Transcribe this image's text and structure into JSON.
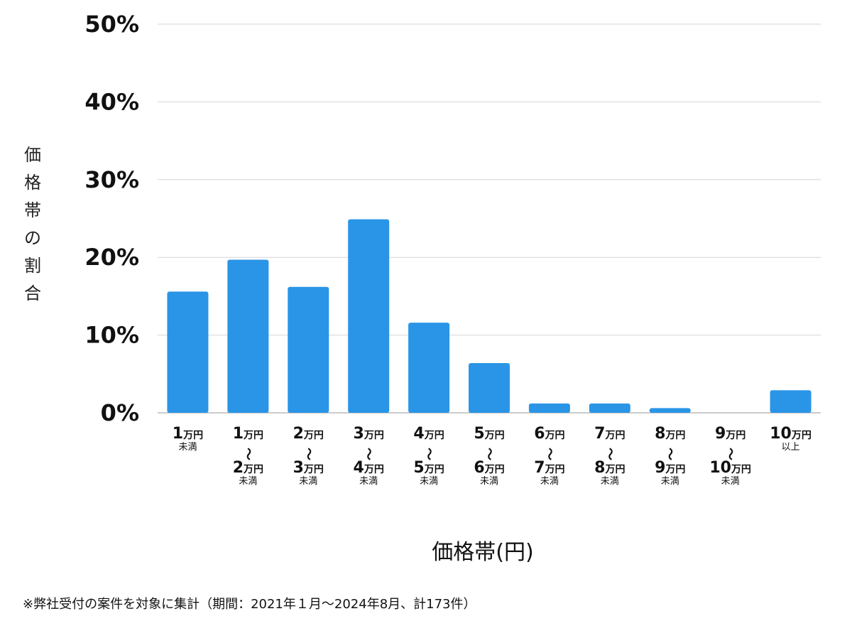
{
  "chart_data": {
    "type": "bar",
    "ylabel": "価格帯の割合",
    "xlabel": "価格帯(円)",
    "yticks": [
      "0%",
      "10%",
      "20%",
      "30%",
      "40%",
      "50%"
    ],
    "ylim": [
      0,
      50
    ],
    "grid": true,
    "bar_color": "#2a95e6",
    "categories": [
      {
        "lines": [
          {
            "num": "1",
            "unit": "万円"
          },
          {
            "small": "未満"
          }
        ]
      },
      {
        "lines": [
          {
            "num": "1",
            "unit": "万円"
          },
          {
            "wave": "〜"
          },
          {
            "num": "2",
            "unit": "万円"
          },
          {
            "small": "未満"
          }
        ]
      },
      {
        "lines": [
          {
            "num": "2",
            "unit": "万円"
          },
          {
            "wave": "〜"
          },
          {
            "num": "3",
            "unit": "万円"
          },
          {
            "small": "未満"
          }
        ]
      },
      {
        "lines": [
          {
            "num": "3",
            "unit": "万円"
          },
          {
            "wave": "〜"
          },
          {
            "num": "4",
            "unit": "万円"
          },
          {
            "small": "未満"
          }
        ]
      },
      {
        "lines": [
          {
            "num": "4",
            "unit": "万円"
          },
          {
            "wave": "〜"
          },
          {
            "num": "5",
            "unit": "万円"
          },
          {
            "small": "未満"
          }
        ]
      },
      {
        "lines": [
          {
            "num": "5",
            "unit": "万円"
          },
          {
            "wave": "〜"
          },
          {
            "num": "6",
            "unit": "万円"
          },
          {
            "small": "未満"
          }
        ]
      },
      {
        "lines": [
          {
            "num": "6",
            "unit": "万円"
          },
          {
            "wave": "〜"
          },
          {
            "num": "7",
            "unit": "万円"
          },
          {
            "small": "未満"
          }
        ]
      },
      {
        "lines": [
          {
            "num": "7",
            "unit": "万円"
          },
          {
            "wave": "〜"
          },
          {
            "num": "8",
            "unit": "万円"
          },
          {
            "small": "未満"
          }
        ]
      },
      {
        "lines": [
          {
            "num": "8",
            "unit": "万円"
          },
          {
            "wave": "〜"
          },
          {
            "num": "9",
            "unit": "万円"
          },
          {
            "small": "未満"
          }
        ]
      },
      {
        "lines": [
          {
            "num": "9",
            "unit": "万円"
          },
          {
            "wave": "〜"
          },
          {
            "num": "10",
            "unit": "万円"
          },
          {
            "small": "未満"
          }
        ]
      },
      {
        "lines": [
          {
            "num": "10",
            "unit": "万円"
          },
          {
            "small": "以上"
          }
        ]
      }
    ],
    "values": [
      15.6,
      19.7,
      16.2,
      24.9,
      11.6,
      6.4,
      1.2,
      1.2,
      0.6,
      0,
      2.9
    ]
  },
  "footnote": "※弊社受付の案件を対象に集計（期間：2021年１月〜2024年8月、計173件）"
}
